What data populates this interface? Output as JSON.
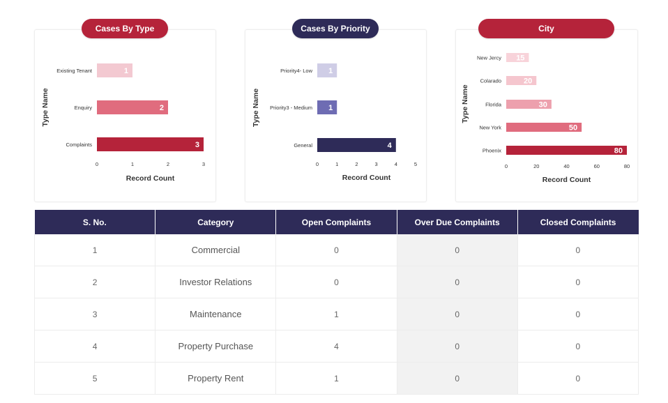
{
  "charts": [
    {
      "id": "type",
      "title": "Cases By Type",
      "pill_color": "#b5233a",
      "axis_label_y": "Type Name",
      "axis_label_x": "Record Count"
    },
    {
      "id": "priority",
      "title": "Cases By Priority",
      "pill_color": "#2e2b58",
      "axis_label_y": "Type Name",
      "axis_label_x": "Record Count"
    },
    {
      "id": "city",
      "title": "City",
      "pill_color": "#b5233a",
      "axis_label_y": "Type Name",
      "axis_label_x": "Record Count"
    }
  ],
  "chart_data": [
    {
      "type": "bar",
      "orientation": "horizontal",
      "title": "Cases By Type",
      "ylabel": "Type Name",
      "xlabel": "Record Count",
      "categories": [
        "Existing Tenant",
        "Enquiry",
        "Complaints"
      ],
      "values": [
        1,
        2,
        3
      ],
      "colors": [
        "#f3c9d1",
        "#e06c7e",
        "#b5233a"
      ],
      "xlim": [
        0,
        3
      ],
      "xticks": [
        0,
        1,
        2,
        3
      ]
    },
    {
      "type": "bar",
      "orientation": "horizontal",
      "title": "Cases By Priority",
      "ylabel": "Type Name",
      "xlabel": "Record Count",
      "categories": [
        "Priority4- Low",
        "Priority3 - Medium",
        "General"
      ],
      "values": [
        1,
        1,
        4
      ],
      "colors": [
        "#cfcde6",
        "#6e6cb3",
        "#2e2b58"
      ],
      "xlim": [
        0,
        5
      ],
      "xticks": [
        0,
        1,
        2,
        3,
        4,
        5
      ]
    },
    {
      "type": "bar",
      "orientation": "horizontal",
      "title": "City",
      "ylabel": "Type Name",
      "xlabel": "Record Count",
      "categories": [
        "New Jercy",
        "Colarado",
        "Florida",
        "New York",
        "Phoenix"
      ],
      "values": [
        15,
        20,
        30,
        50,
        80
      ],
      "colors": [
        "#f8d3da",
        "#f5c6ce",
        "#eda0ad",
        "#e06c7e",
        "#b5233a"
      ],
      "xlim": [
        0,
        80
      ],
      "xticks": [
        0,
        20,
        40,
        60,
        80
      ]
    }
  ],
  "table": {
    "headers": [
      "S. No.",
      "Category",
      "Open Complaints",
      "Over Due Complaints",
      "Closed Complaints"
    ],
    "rows": [
      [
        "1",
        "Commercial",
        "0",
        "0",
        "0"
      ],
      [
        "2",
        "Investor Relations",
        "0",
        "0",
        "0"
      ],
      [
        "3",
        "Maintenance",
        "1",
        "0",
        "0"
      ],
      [
        "4",
        "Property Purchase",
        "4",
        "0",
        "0"
      ],
      [
        "5",
        "Property Rent",
        "1",
        "0",
        "0"
      ]
    ]
  }
}
